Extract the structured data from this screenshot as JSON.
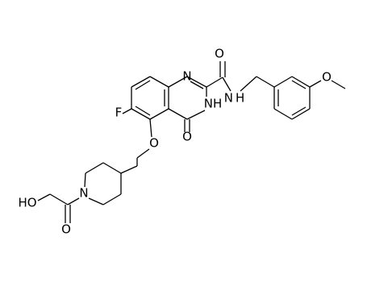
{
  "atoms": [
    {
      "label": "N"
    },
    {
      "label": "O"
    },
    {
      "label": "NH"
    },
    {
      "label": "O"
    },
    {
      "label": "F"
    },
    {
      "label": "NH"
    },
    {
      "label": "O"
    },
    {
      "label": "O"
    },
    {
      "label": "N"
    },
    {
      "label": "HO"
    },
    {
      "label": "O"
    }
  ]
}
